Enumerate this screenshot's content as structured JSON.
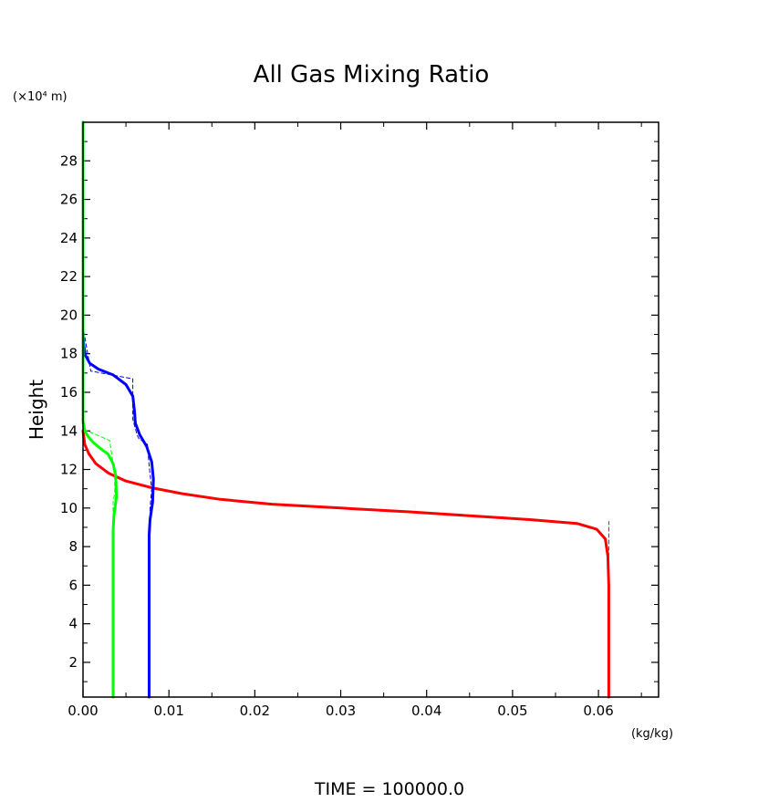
{
  "chart_data": {
    "type": "line",
    "title": "All Gas Mixing Ratio",
    "xlabel": "(kg/kg)",
    "ylabel": "Height",
    "y_unit_label": "(×10⁴ m)",
    "footer": "TIME = 100000.0",
    "xlim": [
      0.0,
      0.067
    ],
    "ylim": [
      0.2,
      30.0
    ],
    "x_tick_labels": [
      "0.00",
      "0.01",
      "0.02",
      "0.03",
      "0.04",
      "0.05",
      "0.06"
    ],
    "x_ticks": [
      0.0,
      0.01,
      0.02,
      0.03,
      0.04,
      0.05,
      0.06
    ],
    "y_ticks": [
      2,
      4,
      6,
      8,
      10,
      12,
      14,
      16,
      18,
      20,
      22,
      24,
      26,
      28
    ],
    "y_tick_labels": [
      "2",
      "4",
      "6",
      "8",
      "10",
      "12",
      "14",
      "16",
      "18",
      "20",
      "22",
      "24",
      "26",
      "28"
    ],
    "grid": false,
    "series": [
      {
        "color": "#ff0000",
        "style": "solid",
        "x": [
          0.0612,
          0.0612,
          0.0612,
          0.0611,
          0.0608,
          0.0598,
          0.0575,
          0.052,
          0.045,
          0.038,
          0.03,
          0.022,
          0.016,
          0.0115,
          0.008,
          0.005,
          0.003,
          0.0015,
          0.0007,
          0.0002,
          0.0
        ],
        "y": [
          0.2,
          4.0,
          6.0,
          7.5,
          8.4,
          8.9,
          9.2,
          9.4,
          9.6,
          9.8,
          10.0,
          10.2,
          10.45,
          10.75,
          11.05,
          11.4,
          11.8,
          12.3,
          12.8,
          13.3,
          14.0
        ]
      },
      {
        "color": "#ff0000",
        "style": "dashed",
        "x": [
          0.0612,
          0.0612,
          0.0612,
          0.0612
        ],
        "y": [
          0.2,
          6.0,
          8.5,
          9.3
        ]
      },
      {
        "color": "#0000ff",
        "style": "solid",
        "x": [
          0.0077,
          0.0077,
          0.0077,
          0.0078,
          0.0081,
          0.0082,
          0.008,
          0.0074,
          0.0066,
          0.0061,
          0.006,
          0.0058,
          0.005,
          0.0035,
          0.0018,
          0.0008,
          0.0003,
          0.0001,
          0.0,
          0.0
        ],
        "y": [
          0.2,
          5.0,
          8.6,
          9.4,
          10.3,
          11.5,
          12.4,
          13.2,
          13.8,
          14.4,
          15.0,
          15.8,
          16.4,
          16.9,
          17.2,
          17.5,
          17.9,
          18.4,
          19.0,
          30.0
        ]
      },
      {
        "color": "#0000ff",
        "style": "dashed",
        "x": [
          0.0078,
          0.0078,
          0.008,
          0.0077,
          0.0075,
          0.0065,
          0.0063,
          0.0058,
          0.0058,
          0.0009,
          0.0
        ],
        "y": [
          9.2,
          10.0,
          11.0,
          12.2,
          13.3,
          13.6,
          13.8,
          14.6,
          16.7,
          17.1,
          19.4
        ]
      },
      {
        "color": "#00ff00",
        "style": "solid",
        "x": [
          0.0035,
          0.0035,
          0.0035,
          0.0036,
          0.0039,
          0.0038,
          0.0035,
          0.0029,
          0.002,
          0.0012,
          0.0006,
          0.0002,
          0.0,
          0.0
        ],
        "y": [
          0.2,
          5.0,
          8.8,
          9.6,
          10.6,
          11.7,
          12.3,
          12.8,
          13.1,
          13.4,
          13.7,
          14.0,
          14.5,
          30.0
        ]
      },
      {
        "color": "#00ff00",
        "style": "dashed",
        "x": [
          0.0035,
          0.0035,
          0.0037,
          0.0037,
          0.0036,
          0.0031,
          0.0,
          0.0
        ],
        "y": [
          9.5,
          10.3,
          10.8,
          11.5,
          12.0,
          13.5,
          14.1,
          15.2
        ]
      }
    ]
  }
}
